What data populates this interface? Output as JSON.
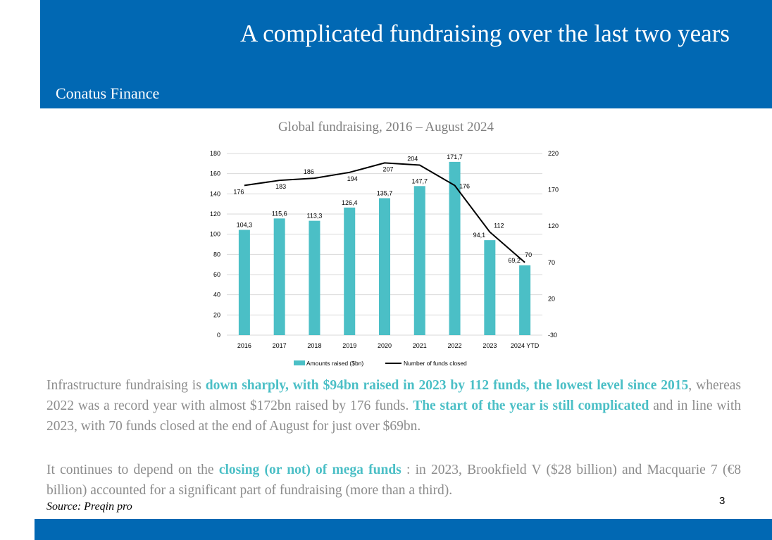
{
  "header": {
    "title": "A complicated fundraising over the last two years",
    "subtitle": "Conatus Finance"
  },
  "colors": {
    "header_bg": "#0168b3",
    "bar": "#4bbfc6",
    "line": "#000000",
    "highlight": "#4bbfc6"
  },
  "chart_data": {
    "type": "bar",
    "title": "Global fundraising, 2016 – August 2024",
    "categories": [
      "2016",
      "2017",
      "2018",
      "2019",
      "2020",
      "2021",
      "2022",
      "2023",
      "2024 YTD"
    ],
    "series": [
      {
        "name": "Amounts raised ($bn)",
        "type": "bar",
        "axis": "left",
        "values": [
          104.3,
          115.6,
          113.3,
          126.4,
          135.7,
          147.7,
          171.7,
          94.1,
          69.2
        ],
        "labels": [
          "104,3",
          "115,6",
          "113,3",
          "126,4",
          "135,7",
          "147,7",
          "171,7",
          "94,1",
          "69,2"
        ]
      },
      {
        "name": "Number of funds closed",
        "type": "line",
        "axis": "right",
        "values": [
          176,
          183,
          186,
          194,
          207,
          204,
          176,
          112,
          70
        ],
        "labels": [
          "176",
          "183",
          "186",
          "194",
          "207",
          "204",
          "176",
          "112",
          "70"
        ]
      }
    ],
    "y_left": {
      "lim": [
        0,
        180
      ],
      "ticks": [
        "0",
        "20",
        "40",
        "60",
        "80",
        "100",
        "120",
        "140",
        "160",
        "180"
      ]
    },
    "y_right": {
      "lim": [
        -30,
        220
      ],
      "ticks": [
        "-30",
        "20",
        "70",
        "120",
        "170",
        "220"
      ]
    },
    "grid": true,
    "legend": "bottom"
  },
  "paragraphs": [
    [
      {
        "t": "Infrastructure fundraising is ",
        "hl": false
      },
      {
        "t": "down sharply, with $94bn raised in 2023 by 112 funds, the lowest level since 2015",
        "hl": true
      },
      {
        "t": ", whereas 2022 was a record year with almost $172bn raised by 176 funds. ",
        "hl": false
      },
      {
        "t": "The start of the year is still complicated",
        "hl": true
      },
      {
        "t": " and in line with 2023, with 70 funds closed at the end of August for just over $69bn.",
        "hl": false
      }
    ],
    [
      {
        "t": "It continues to depend on the ",
        "hl": false
      },
      {
        "t": "closing (or not) of mega funds",
        "hl": true
      },
      {
        "t": " : in 2023, Brookfield V ($28 billion) and Macquarie 7 (€8 billion) accounted for a significant part of fundraising (more than a third).",
        "hl": false
      }
    ]
  ],
  "source": "Source: Preqin pro",
  "page_number": "3"
}
